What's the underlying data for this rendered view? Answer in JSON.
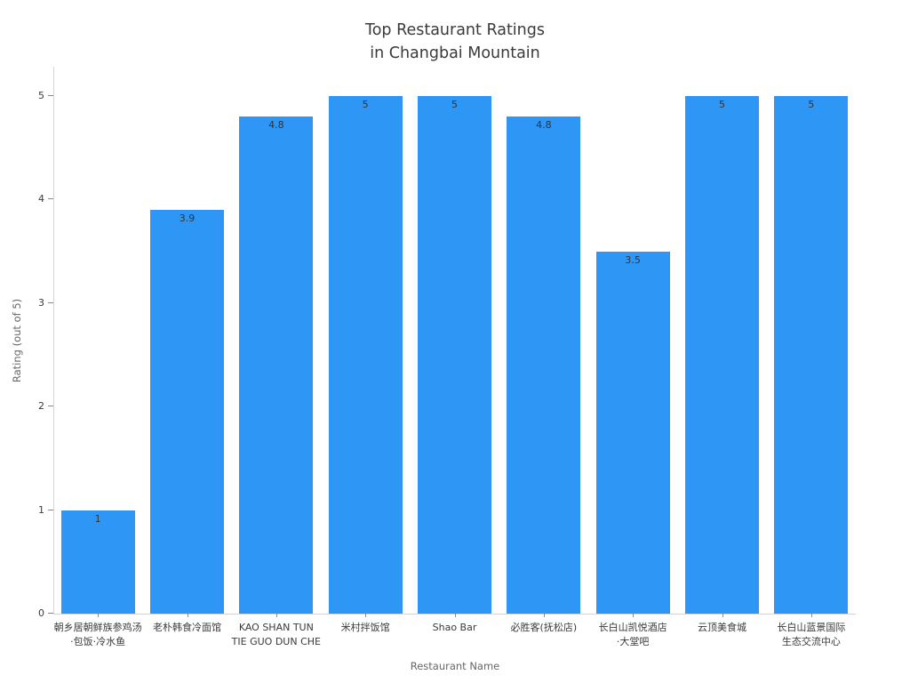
{
  "title": {
    "line1": "Top Restaurant Ratings",
    "line2": "in Changbai Mountain"
  },
  "chart_data": {
    "type": "bar",
    "title": "Top Restaurant Ratings in Changbai Mountain",
    "xlabel": "Restaurant Name",
    "ylabel": "Rating (out of 5)",
    "categories": [
      "朝乡居朝鲜族参鸡汤\n·包饭·冷水鱼",
      "老朴韩食冷面馆",
      "KAO SHAN TUN\nTIE GUO DUN CHE",
      "米村拌饭馆",
      "Shao Bar",
      "必胜客(抚松店)",
      "长白山凯悦酒店\n·大堂吧",
      "云顶美食城",
      "长白山蓝景国际\n生态交流中心"
    ],
    "values": [
      1,
      3.9,
      4.8,
      5,
      5,
      4.8,
      3.5,
      5,
      5
    ],
    "bar_labels": [
      "1",
      "3.9",
      "4.8",
      "5",
      "5",
      "4.8",
      "3.5",
      "5",
      "5"
    ],
    "yticks": [
      0,
      1,
      2,
      3,
      4,
      5
    ],
    "ylim": [
      0,
      5
    ],
    "grid": false,
    "legend": false
  },
  "colors": {
    "bar": "#2E96F5",
    "title_text": "#3a3a3a",
    "tick_text": "#3a3a3a",
    "axis_title_text": "#666666",
    "spine": "#d4d4d4",
    "tick_mark": "#8a8a8a",
    "value_label_text": "#333333",
    "background": "#ffffff"
  }
}
